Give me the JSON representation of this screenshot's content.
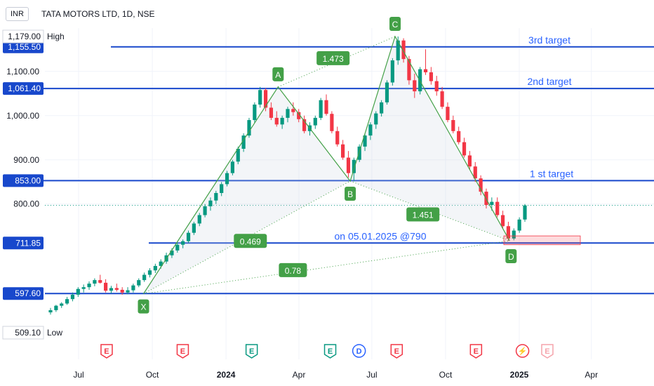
{
  "header": {
    "currency": "INR",
    "symbol": "TATA MOTORS LTD, 1D, NSE"
  },
  "chart_data": {
    "type": "candlestick-with-harmonic-pattern",
    "ylim": [
      505,
      1190
    ],
    "y_ticks": [
      1100,
      1000,
      900,
      800
    ],
    "y_tick_labels": [
      "1,100.00",
      "1,000.00",
      "900.00",
      "800.00"
    ],
    "x_ticks": [
      {
        "label": "Jul",
        "x": "2023-07"
      },
      {
        "label": "Oct",
        "x": "2023-10"
      },
      {
        "label": "2024",
        "x": "2024-01"
      },
      {
        "label": "Apr",
        "x": "2024-04"
      },
      {
        "label": "Jul",
        "x": "2024-07"
      },
      {
        "label": "Oct",
        "x": "2024-10"
      },
      {
        "label": "2025",
        "x": "2025-01"
      },
      {
        "label": "Apr",
        "x": "2025-04"
      }
    ],
    "high": {
      "value": 1179.0,
      "label": "1,179.00",
      "tag": "High"
    },
    "low": {
      "value": 509.1,
      "label": "509.10",
      "tag": "Low"
    },
    "last_price": 797,
    "levels": [
      {
        "value": 1155.5,
        "label": "1,155.50",
        "text": "3rd target"
      },
      {
        "value": 1061.4,
        "label": "1,061.40",
        "text": "2nd target"
      },
      {
        "value": 853.0,
        "label": "853.00",
        "text": "1 st target"
      },
      {
        "value": 711.85,
        "label": "711.85",
        "text": "on 05.01.2025 @790"
      },
      {
        "value": 597.6,
        "label": "597.60",
        "text": ""
      }
    ],
    "pattern_points": [
      {
        "name": "X",
        "date": "2023-09-20",
        "price": 597
      },
      {
        "name": "A",
        "date": "2024-03-06",
        "price": 1065
      },
      {
        "name": "B",
        "date": "2024-06-04",
        "price": 852
      },
      {
        "name": "C",
        "date": "2024-07-30",
        "price": 1179
      },
      {
        "name": "D",
        "date": "2024-12-20",
        "price": 717
      }
    ],
    "ratios": [
      {
        "label": "1.473"
      },
      {
        "label": "0.469"
      },
      {
        "label": "1.451"
      },
      {
        "label": "0.78"
      }
    ],
    "candles": [
      [
        555,
        565,
        550,
        560
      ],
      [
        560,
        572,
        556,
        570
      ],
      [
        570,
        578,
        565,
        575
      ],
      [
        575,
        590,
        572,
        585
      ],
      [
        585,
        600,
        580,
        595
      ],
      [
        595,
        612,
        590,
        608
      ],
      [
        608,
        618,
        600,
        612
      ],
      [
        612,
        625,
        606,
        620
      ],
      [
        620,
        632,
        614,
        628
      ],
      [
        628,
        640,
        620,
        622
      ],
      [
        622,
        630,
        600,
        604
      ],
      [
        604,
        615,
        598,
        610
      ],
      [
        610,
        620,
        602,
        606
      ],
      [
        606,
        612,
        595,
        600
      ],
      [
        600,
        612,
        596,
        605
      ],
      [
        605,
        620,
        600,
        616
      ],
      [
        616,
        632,
        612,
        628
      ],
      [
        628,
        645,
        624,
        640
      ],
      [
        640,
        655,
        634,
        650
      ],
      [
        650,
        665,
        644,
        660
      ],
      [
        660,
        675,
        654,
        670
      ],
      [
        670,
        690,
        665,
        684
      ],
      [
        684,
        700,
        678,
        695
      ],
      [
        695,
        712,
        690,
        708
      ],
      [
        708,
        720,
        700,
        716
      ],
      [
        716,
        740,
        712,
        735
      ],
      [
        735,
        760,
        730,
        756
      ],
      [
        756,
        780,
        750,
        775
      ],
      [
        775,
        800,
        770,
        795
      ],
      [
        795,
        815,
        785,
        808
      ],
      [
        808,
        830,
        800,
        825
      ],
      [
        825,
        850,
        818,
        845
      ],
      [
        845,
        875,
        840,
        870
      ],
      [
        870,
        900,
        865,
        896
      ],
      [
        896,
        930,
        890,
        925
      ],
      [
        925,
        960,
        918,
        955
      ],
      [
        955,
        995,
        950,
        990
      ],
      [
        990,
        1030,
        984,
        1025
      ],
      [
        1025,
        1065,
        1018,
        1058
      ],
      [
        1058,
        1062,
        1010,
        1018
      ],
      [
        1018,
        1030,
        990,
        995
      ],
      [
        995,
        1010,
        975,
        980
      ],
      [
        980,
        1000,
        970,
        995
      ],
      [
        995,
        1020,
        985,
        1015
      ],
      [
        1015,
        1030,
        1000,
        1008
      ],
      [
        1008,
        1015,
        985,
        992
      ],
      [
        992,
        1000,
        960,
        965
      ],
      [
        965,
        985,
        955,
        978
      ],
      [
        978,
        1000,
        970,
        995
      ],
      [
        995,
        1040,
        990,
        1035
      ],
      [
        1035,
        1048,
        1000,
        1004
      ],
      [
        1004,
        1010,
        960,
        965
      ],
      [
        965,
        975,
        930,
        935
      ],
      [
        935,
        945,
        900,
        905
      ],
      [
        905,
        920,
        860,
        870
      ],
      [
        870,
        905,
        852,
        900
      ],
      [
        900,
        935,
        895,
        930
      ],
      [
        930,
        960,
        920,
        955
      ],
      [
        955,
        985,
        945,
        980
      ],
      [
        980,
        1010,
        970,
        1005
      ],
      [
        1005,
        1035,
        998,
        1030
      ],
      [
        1030,
        1080,
        1025,
        1075
      ],
      [
        1075,
        1130,
        1068,
        1125
      ],
      [
        1125,
        1179,
        1115,
        1170
      ],
      [
        1170,
        1175,
        1120,
        1128
      ],
      [
        1128,
        1135,
        1070,
        1080
      ],
      [
        1080,
        1095,
        1040,
        1055
      ],
      [
        1055,
        1110,
        1048,
        1105
      ],
      [
        1105,
        1150,
        1092,
        1098
      ],
      [
        1098,
        1110,
        1070,
        1078
      ],
      [
        1078,
        1090,
        1045,
        1055
      ],
      [
        1055,
        1065,
        1015,
        1020
      ],
      [
        1020,
        1030,
        985,
        990
      ],
      [
        990,
        1000,
        960,
        965
      ],
      [
        965,
        975,
        935,
        940
      ],
      [
        940,
        950,
        905,
        910
      ],
      [
        910,
        920,
        878,
        885
      ],
      [
        885,
        895,
        850,
        858
      ],
      [
        858,
        865,
        820,
        828
      ],
      [
        828,
        835,
        790,
        798
      ],
      [
        798,
        815,
        785,
        805
      ],
      [
        805,
        815,
        770,
        775
      ],
      [
        775,
        785,
        745,
        750
      ],
      [
        750,
        760,
        717,
        722
      ],
      [
        722,
        745,
        718,
        740
      ],
      [
        740,
        770,
        735,
        765
      ],
      [
        765,
        800,
        760,
        797
      ]
    ]
  }
}
